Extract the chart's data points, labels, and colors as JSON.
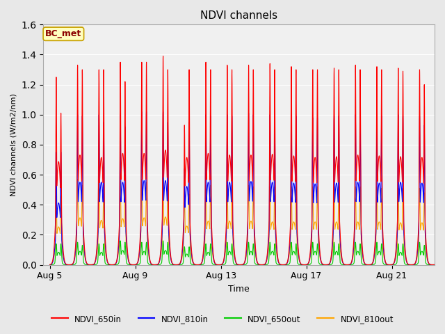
{
  "title": "NDVI channels",
  "xlabel": "Time",
  "ylabel": "NDVI channels (W/m2/nm)",
  "ylim": [
    0.0,
    1.6
  ],
  "yticks": [
    0.0,
    0.2,
    0.4,
    0.6,
    0.8,
    1.0,
    1.2,
    1.4,
    1.6
  ],
  "annotation_text": "BC_met",
  "annotation_color": "#8B0000",
  "annotation_bg": "#FFFFC0",
  "annotation_border": "#C8A000",
  "legend_labels": [
    "NDVI_650in",
    "NDVI_810in",
    "NDVI_650out",
    "NDVI_810out"
  ],
  "legend_colors": [
    "#FF0000",
    "#0000FF",
    "#00CC00",
    "#FFA500"
  ],
  "line_colors": {
    "NDVI_650in": "#FF0000",
    "NDVI_810in": "#0000FF",
    "NDVI_650out": "#00CC00",
    "NDVI_810out": "#FFA500"
  },
  "background_color": "#E8E8E8",
  "axes_bg": "#F0F0F0",
  "x_tick_labels": [
    "Aug 5",
    "Aug 9",
    "Aug 13",
    "Aug 17",
    "Aug 21"
  ],
  "x_tick_positions": [
    0,
    4,
    8,
    12,
    16
  ],
  "peaks_650in": [
    1.25,
    1.33,
    1.3,
    1.35,
    1.35,
    1.39,
    0.93,
    1.35,
    1.33,
    1.33,
    1.34,
    1.32,
    1.3,
    1.31,
    1.33,
    1.32,
    1.31,
    1.3,
    1.29
  ],
  "peaks2_650in": [
    1.01,
    1.3,
    1.3,
    1.22,
    1.35,
    1.3,
    1.3,
    1.3,
    1.3,
    1.3,
    1.3,
    1.3,
    1.3,
    1.3,
    1.3,
    1.3,
    1.29,
    1.2,
    1.29
  ],
  "peaks_810in": [
    0.75,
    1.0,
    1.0,
    1.0,
    1.02,
    1.02,
    0.64,
    1.0,
    1.0,
    1.01,
    1.0,
    0.99,
    0.98,
    0.99,
    1.0,
    0.99,
    1.0,
    0.99,
    0.96
  ],
  "peaks2_810in": [
    0.75,
    0.99,
    0.95,
    0.92,
    1.02,
    0.95,
    0.95,
    0.99,
    0.99,
    1.0,
    0.99,
    0.99,
    0.98,
    0.99,
    0.99,
    0.99,
    0.99,
    0.93,
    0.96
  ],
  "peaks_650out": [
    0.14,
    0.15,
    0.14,
    0.16,
    0.15,
    0.16,
    0.12,
    0.14,
    0.15,
    0.15,
    0.15,
    0.15,
    0.15,
    0.15,
    0.15,
    0.15,
    0.14,
    0.15,
    0.14
  ],
  "peaks2_650out": [
    0.14,
    0.13,
    0.14,
    0.15,
    0.15,
    0.15,
    0.12,
    0.14,
    0.14,
    0.14,
    0.14,
    0.14,
    0.14,
    0.14,
    0.14,
    0.14,
    0.14,
    0.13,
    0.14
  ],
  "peaks_810out": [
    0.46,
    0.57,
    0.54,
    0.56,
    0.57,
    0.58,
    0.47,
    0.53,
    0.53,
    0.53,
    0.52,
    0.52,
    0.52,
    0.52,
    0.52,
    0.52,
    0.51,
    0.51,
    0.5
  ],
  "peaks2_810out": [
    0.46,
    0.53,
    0.53,
    0.54,
    0.55,
    0.54,
    0.47,
    0.53,
    0.53,
    0.52,
    0.52,
    0.52,
    0.52,
    0.52,
    0.52,
    0.51,
    0.51,
    0.48,
    0.5
  ]
}
